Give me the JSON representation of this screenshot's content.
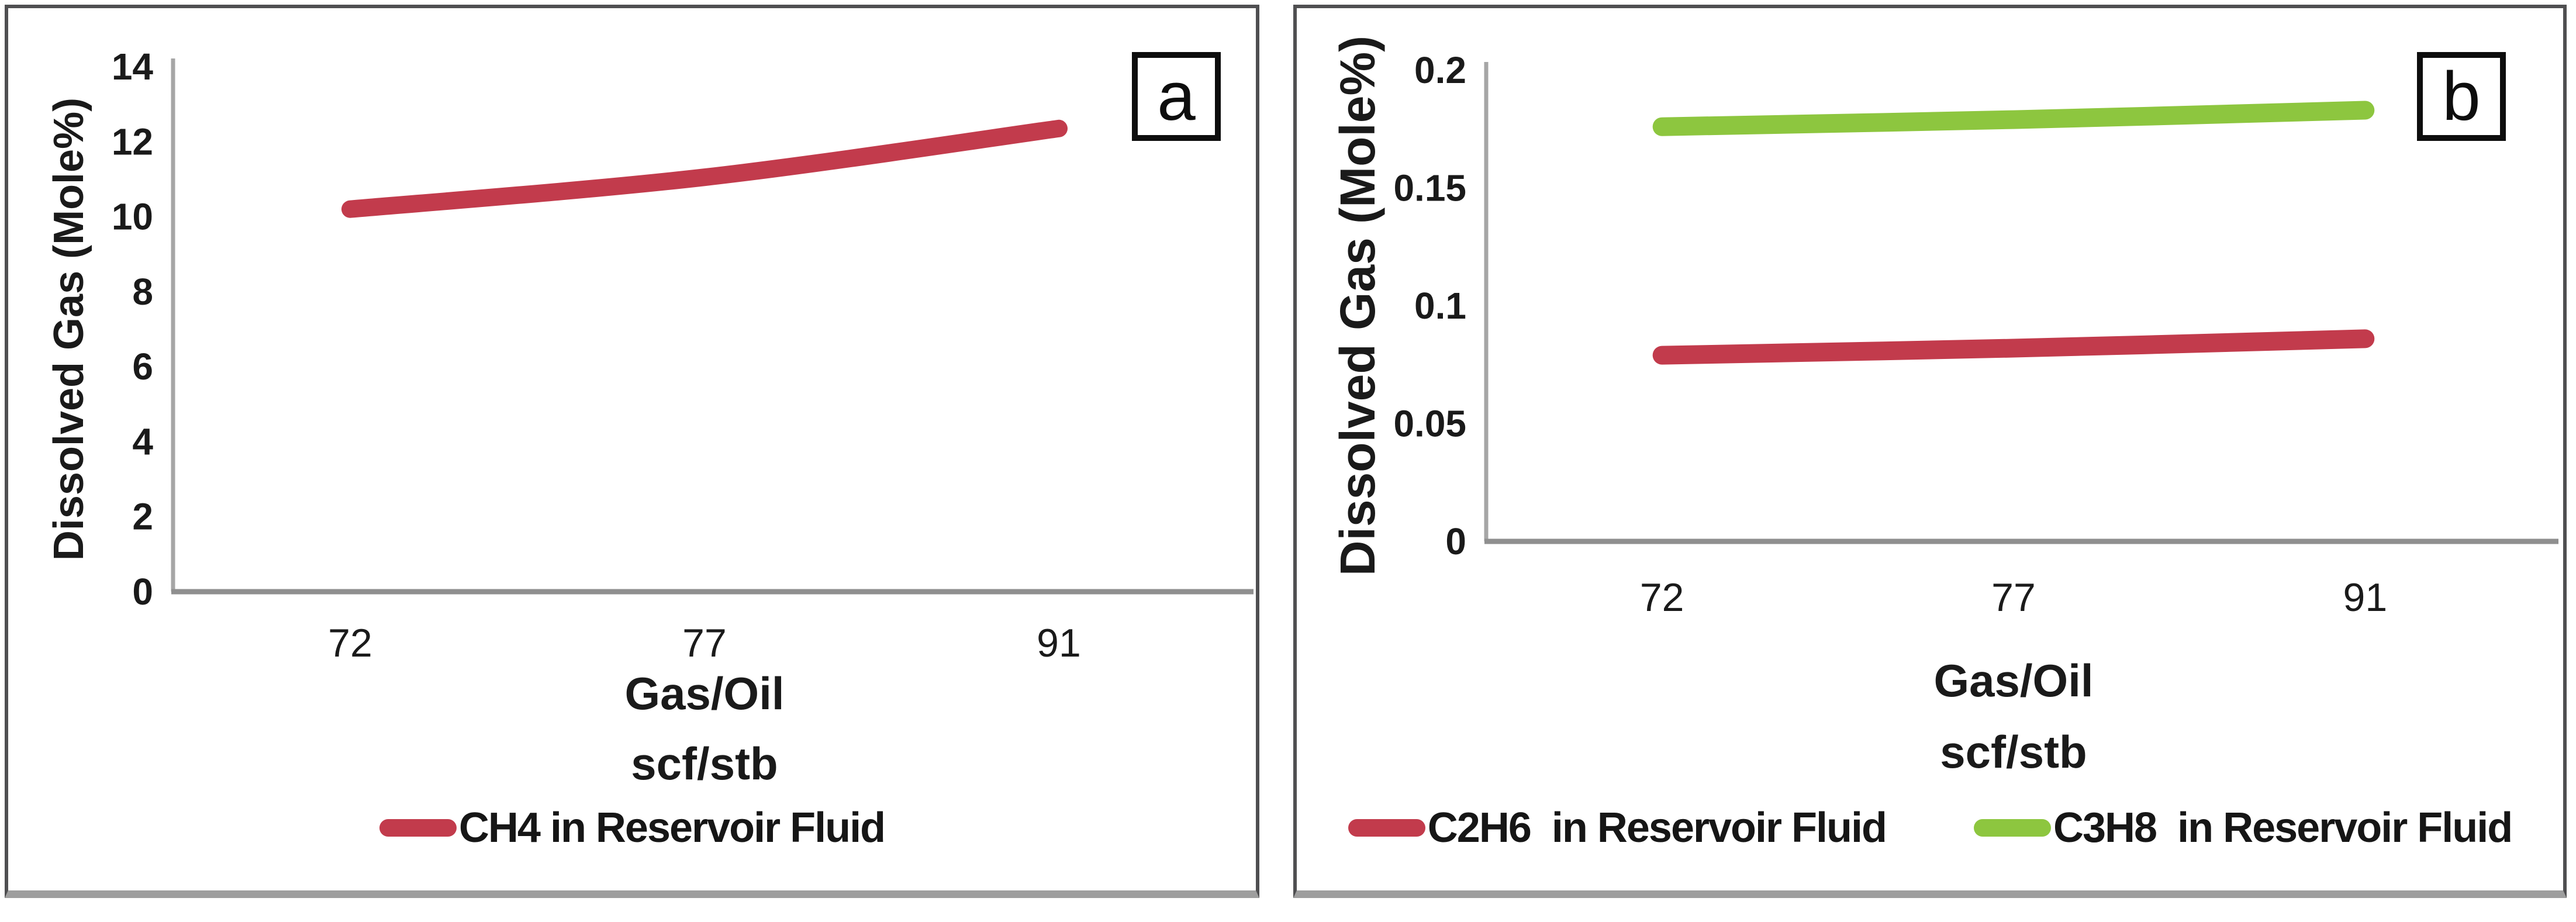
{
  "figure": {
    "background_color": "#ffffff",
    "accent_red": "#c23b4c",
    "accent_green": "#8dc63f",
    "axis_color": "#a6a6a6"
  },
  "chart_data": [
    {
      "type": "line",
      "panel_label": "a",
      "title": "",
      "ylabel": "Dissolved Gas (Mole%)",
      "xlabel_lines": [
        "Gas/Oil",
        "scf/stb"
      ],
      "categories": [
        "72",
        "77",
        "91"
      ],
      "x": [
        72,
        77,
        91
      ],
      "series": [
        {
          "name": "CH4 in Reservoir Fluid",
          "color": "#c23b4c",
          "values": [
            10.2,
            11.05,
            12.35
          ]
        }
      ],
      "ylim": [
        0,
        14
      ],
      "yticks": [
        0,
        2,
        4,
        6,
        8,
        10,
        12,
        14
      ],
      "ytick_labels": [
        "0",
        "2",
        "4",
        "6",
        "8",
        "10",
        "12",
        "14"
      ],
      "grid": false,
      "legend_position": "bottom"
    },
    {
      "type": "line",
      "panel_label": "b",
      "title": "",
      "ylabel": "Dissolved Gas (Mole%)",
      "xlabel_lines": [
        "Gas/Oil",
        "scf/stb"
      ],
      "categories": [
        "72",
        "77",
        "91"
      ],
      "x": [
        72,
        77,
        91
      ],
      "series": [
        {
          "name": "C2H6  in Reservoir Fluid",
          "color": "#c23b4c",
          "values": [
            0.079,
            0.082,
            0.086
          ]
        },
        {
          "name": "C3H8  in Reservoir Fluid",
          "color": "#8dc63f",
          "values": [
            0.176,
            0.179,
            0.183
          ]
        }
      ],
      "ylim": [
        0,
        0.2
      ],
      "yticks": [
        0,
        0.05,
        0.1,
        0.15,
        0.2
      ],
      "ytick_labels": [
        "0",
        "0.05",
        "0.1",
        "0.15",
        "0.2"
      ],
      "grid": false,
      "legend_position": "bottom"
    }
  ]
}
